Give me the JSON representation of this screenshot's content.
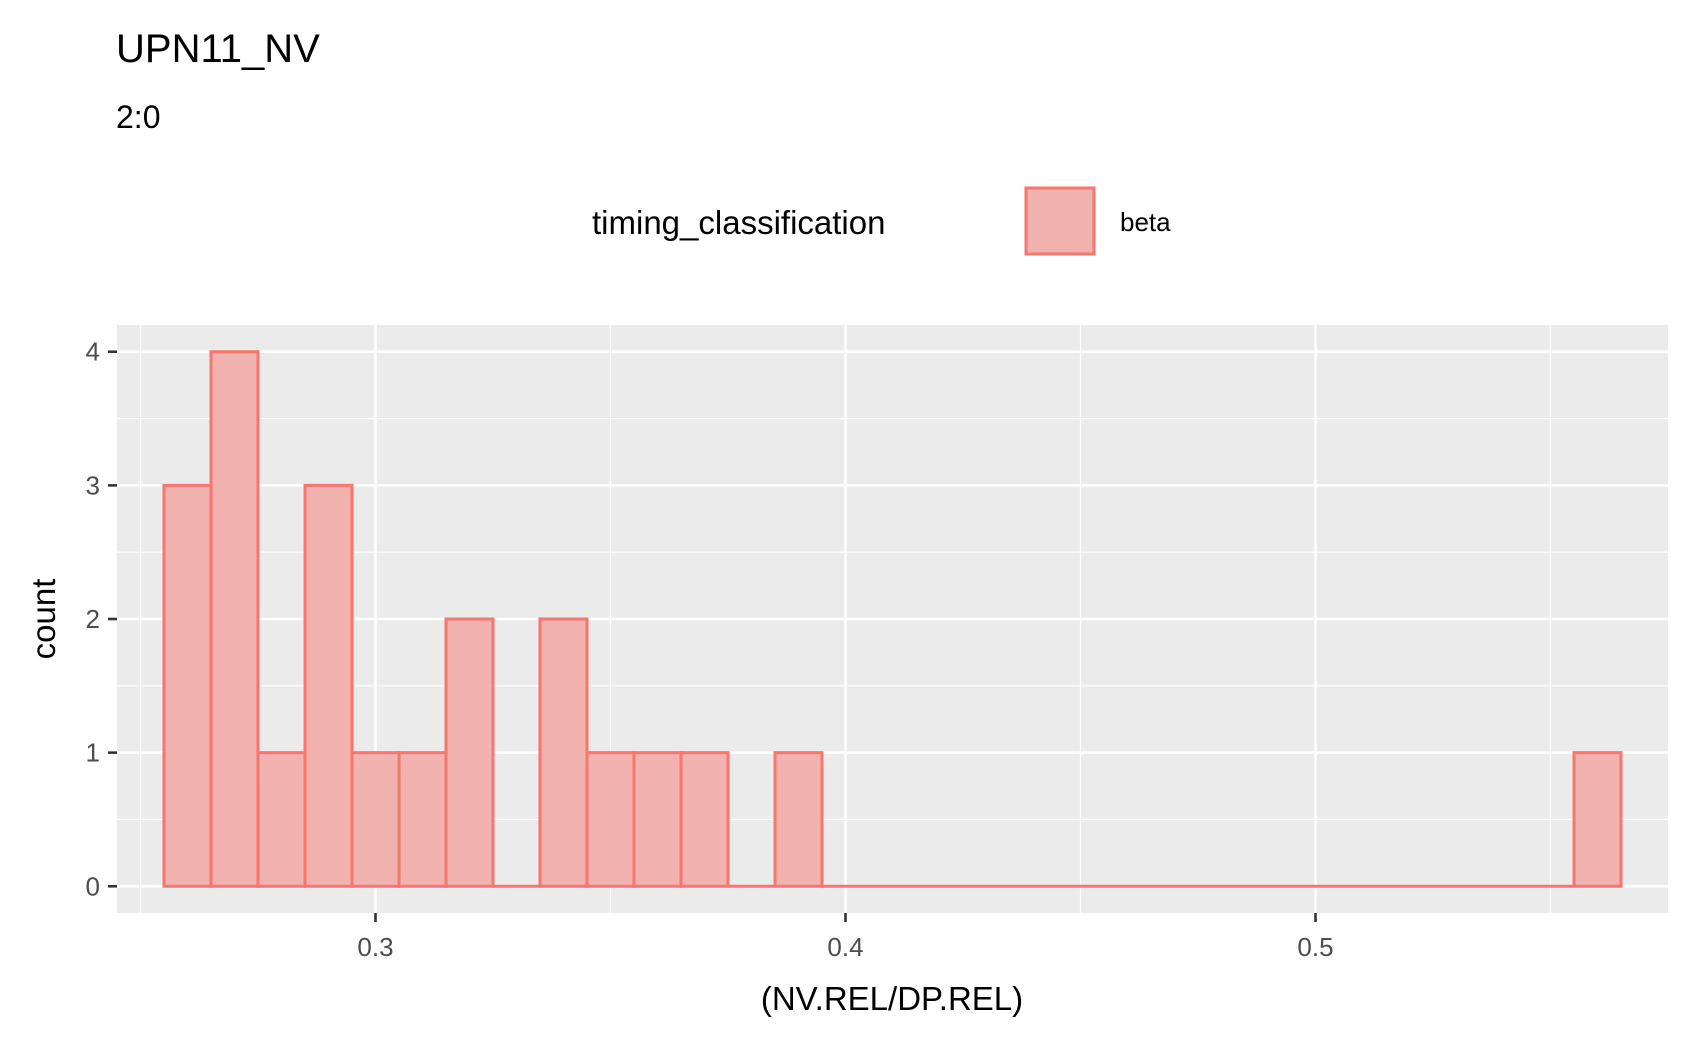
{
  "title": "UPN11_NV",
  "subtitle": "2:0",
  "legend": {
    "title": "timing_classification",
    "items": [
      {
        "label": "beta",
        "fill": "#F2B2AF",
        "stroke": "#F8766D"
      }
    ]
  },
  "chart_data": {
    "type": "bar",
    "subtype": "histogram",
    "bin_width": 0.01,
    "bins": [
      {
        "x0": 0.255,
        "x1": 0.265,
        "count": 3
      },
      {
        "x0": 0.265,
        "x1": 0.275,
        "count": 4
      },
      {
        "x0": 0.275,
        "x1": 0.285,
        "count": 1
      },
      {
        "x0": 0.285,
        "x1": 0.295,
        "count": 3
      },
      {
        "x0": 0.295,
        "x1": 0.305,
        "count": 1
      },
      {
        "x0": 0.305,
        "x1": 0.315,
        "count": 1
      },
      {
        "x0": 0.315,
        "x1": 0.325,
        "count": 2
      },
      {
        "x0": 0.325,
        "x1": 0.335,
        "count": 0
      },
      {
        "x0": 0.335,
        "x1": 0.345,
        "count": 2
      },
      {
        "x0": 0.345,
        "x1": 0.355,
        "count": 1
      },
      {
        "x0": 0.355,
        "x1": 0.365,
        "count": 1
      },
      {
        "x0": 0.365,
        "x1": 0.375,
        "count": 1
      },
      {
        "x0": 0.375,
        "x1": 0.385,
        "count": 0
      },
      {
        "x0": 0.385,
        "x1": 0.395,
        "count": 1
      },
      {
        "x0": 0.395,
        "x1": 0.405,
        "count": 0
      },
      {
        "x0": 0.405,
        "x1": 0.415,
        "count": 0
      },
      {
        "x0": 0.415,
        "x1": 0.425,
        "count": 0
      },
      {
        "x0": 0.425,
        "x1": 0.435,
        "count": 0
      },
      {
        "x0": 0.435,
        "x1": 0.445,
        "count": 0
      },
      {
        "x0": 0.445,
        "x1": 0.455,
        "count": 0
      },
      {
        "x0": 0.455,
        "x1": 0.465,
        "count": 0
      },
      {
        "x0": 0.465,
        "x1": 0.475,
        "count": 0
      },
      {
        "x0": 0.475,
        "x1": 0.485,
        "count": 0
      },
      {
        "x0": 0.485,
        "x1": 0.495,
        "count": 0
      },
      {
        "x0": 0.495,
        "x1": 0.505,
        "count": 0
      },
      {
        "x0": 0.505,
        "x1": 0.515,
        "count": 0
      },
      {
        "x0": 0.515,
        "x1": 0.525,
        "count": 0
      },
      {
        "x0": 0.525,
        "x1": 0.535,
        "count": 0
      },
      {
        "x0": 0.535,
        "x1": 0.545,
        "count": 0
      },
      {
        "x0": 0.545,
        "x1": 0.555,
        "count": 0
      },
      {
        "x0": 0.555,
        "x1": 0.565,
        "count": 1
      }
    ],
    "series_name": "beta",
    "xlabel": "(NV.REL/DP.REL)",
    "ylabel": "count",
    "xlim": [
      0.245,
      0.575
    ],
    "ylim": [
      -0.2,
      4.2
    ],
    "x_ticks": [
      0.3,
      0.4,
      0.5
    ],
    "x_tick_labels": [
      "0.3",
      "0.4",
      "0.5"
    ],
    "x_minor_ticks": [
      0.25,
      0.35,
      0.45,
      0.55
    ],
    "y_ticks": [
      0,
      1,
      2,
      3,
      4
    ],
    "y_tick_labels": [
      "0",
      "1",
      "2",
      "3",
      "4"
    ],
    "y_minor_ticks": [
      0.5,
      1.5,
      2.5,
      3.5
    ],
    "grid": true,
    "legend_position": "top",
    "colors": {
      "panel": "#EBEBEB",
      "grid": "#FFFFFF",
      "fill": "#F2B2AF",
      "stroke": "#F8766D",
      "tick": "#333333",
      "tick_label": "#4D4D4D"
    }
  }
}
